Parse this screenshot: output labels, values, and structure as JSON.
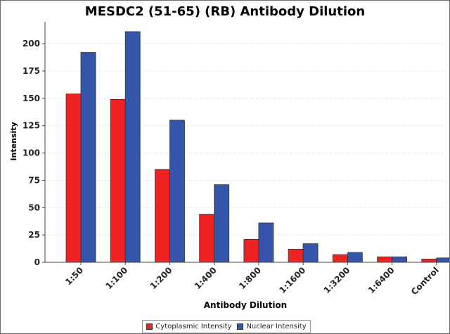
{
  "chart_data": {
    "type": "bar",
    "title": "MESDC2 (51-65) (RB) Antibody Dilution",
    "xlabel": "Antibody Dilution",
    "ylabel": "Intensity",
    "categories": [
      "1:50",
      "1:100",
      "1:200",
      "1:400",
      "1:800",
      "1:1600",
      "1:3200",
      "1:6400",
      "Control"
    ],
    "series": [
      {
        "name": "Cytoplasmic Intensity",
        "color": "#ee2222",
        "values": [
          154,
          149,
          85,
          44,
          21,
          12,
          7,
          5,
          3
        ]
      },
      {
        "name": "Nuclear Intensity",
        "color": "#3355aa",
        "values": [
          192,
          211,
          130,
          71,
          36,
          17,
          9,
          5,
          4
        ]
      }
    ],
    "ylim": [
      0,
      220
    ],
    "yticks": [
      0,
      25,
      50,
      75,
      100,
      125,
      150,
      175,
      200
    ],
    "grid": true,
    "legend_position": "bottom"
  }
}
